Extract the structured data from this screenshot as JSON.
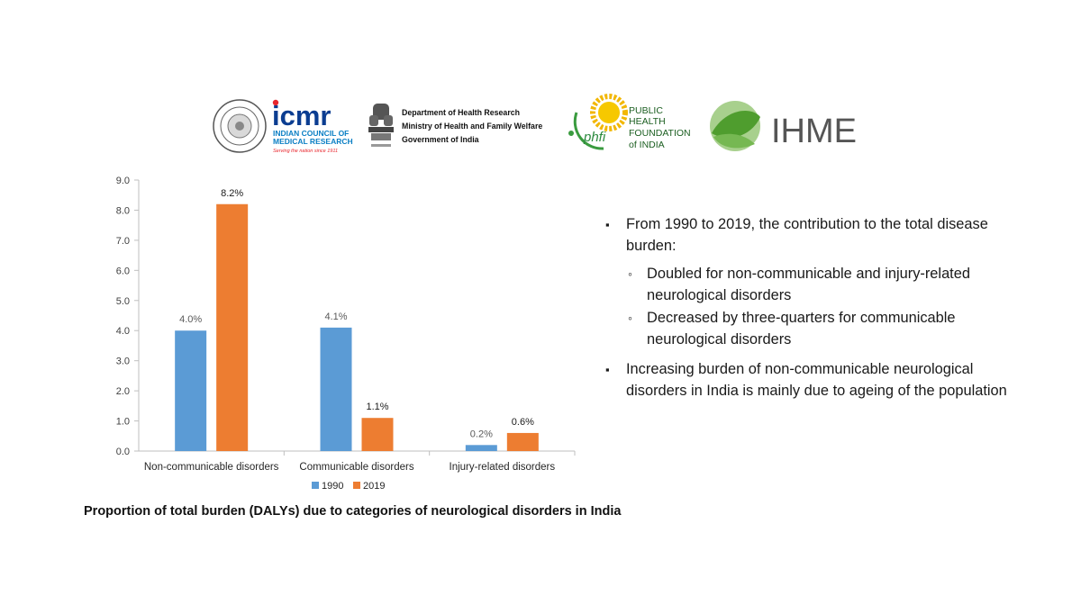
{
  "logos": {
    "icmr": {
      "name": "icmr",
      "line1": "INDIAN COUNCIL OF",
      "line2": "MEDICAL RESEARCH",
      "tagline": "Serving the nation since 1911"
    },
    "dhr": {
      "line1": "Department of Health Research",
      "line2": "Ministry of Health and Family Welfare",
      "line3": "Government of India"
    },
    "phfi": {
      "mark": "phfi",
      "line1": "PUBLIC",
      "line2": "HEALTH",
      "line3": "FOUNDATION",
      "line4": "of INDIA"
    },
    "ihme": {
      "name": "IHME"
    }
  },
  "colors": {
    "series_1990": "#5b9bd5",
    "series_2019": "#ed7d31",
    "axis": "#bfbfbf",
    "text": "#404040"
  },
  "chart_data": {
    "type": "bar",
    "categories": [
      "Non-communicable disorders",
      "Communicable disorders",
      "Injury-related disorders"
    ],
    "series": [
      {
        "name": "1990",
        "values": [
          4.0,
          4.1,
          0.2
        ],
        "labels": [
          "4.0%",
          "4.1%",
          "0.2%"
        ]
      },
      {
        "name": "2019",
        "values": [
          8.2,
          1.1,
          0.6
        ],
        "labels": [
          "8.2%",
          "1.1%",
          "0.6%"
        ]
      }
    ],
    "yticks": [
      "0.0",
      "1.0",
      "2.0",
      "3.0",
      "4.0",
      "5.0",
      "6.0",
      "7.0",
      "8.0",
      "9.0"
    ],
    "ylim": [
      0,
      9
    ],
    "legend": "bottom",
    "grid": false,
    "title": "Proportion of total burden (DALYs) due to categories of neurological disorders in India"
  },
  "notes": {
    "bullet1": "From 1990 to 2019, the contribution to the total disease burden:",
    "sub1": "Doubled for non-communicable and injury-related neurological disorders",
    "sub2": "Decreased by three-quarters for communicable neurological disorders",
    "bullet2": "Increasing burden of non-communicable neurological disorders in India is mainly due to ageing of the population"
  }
}
